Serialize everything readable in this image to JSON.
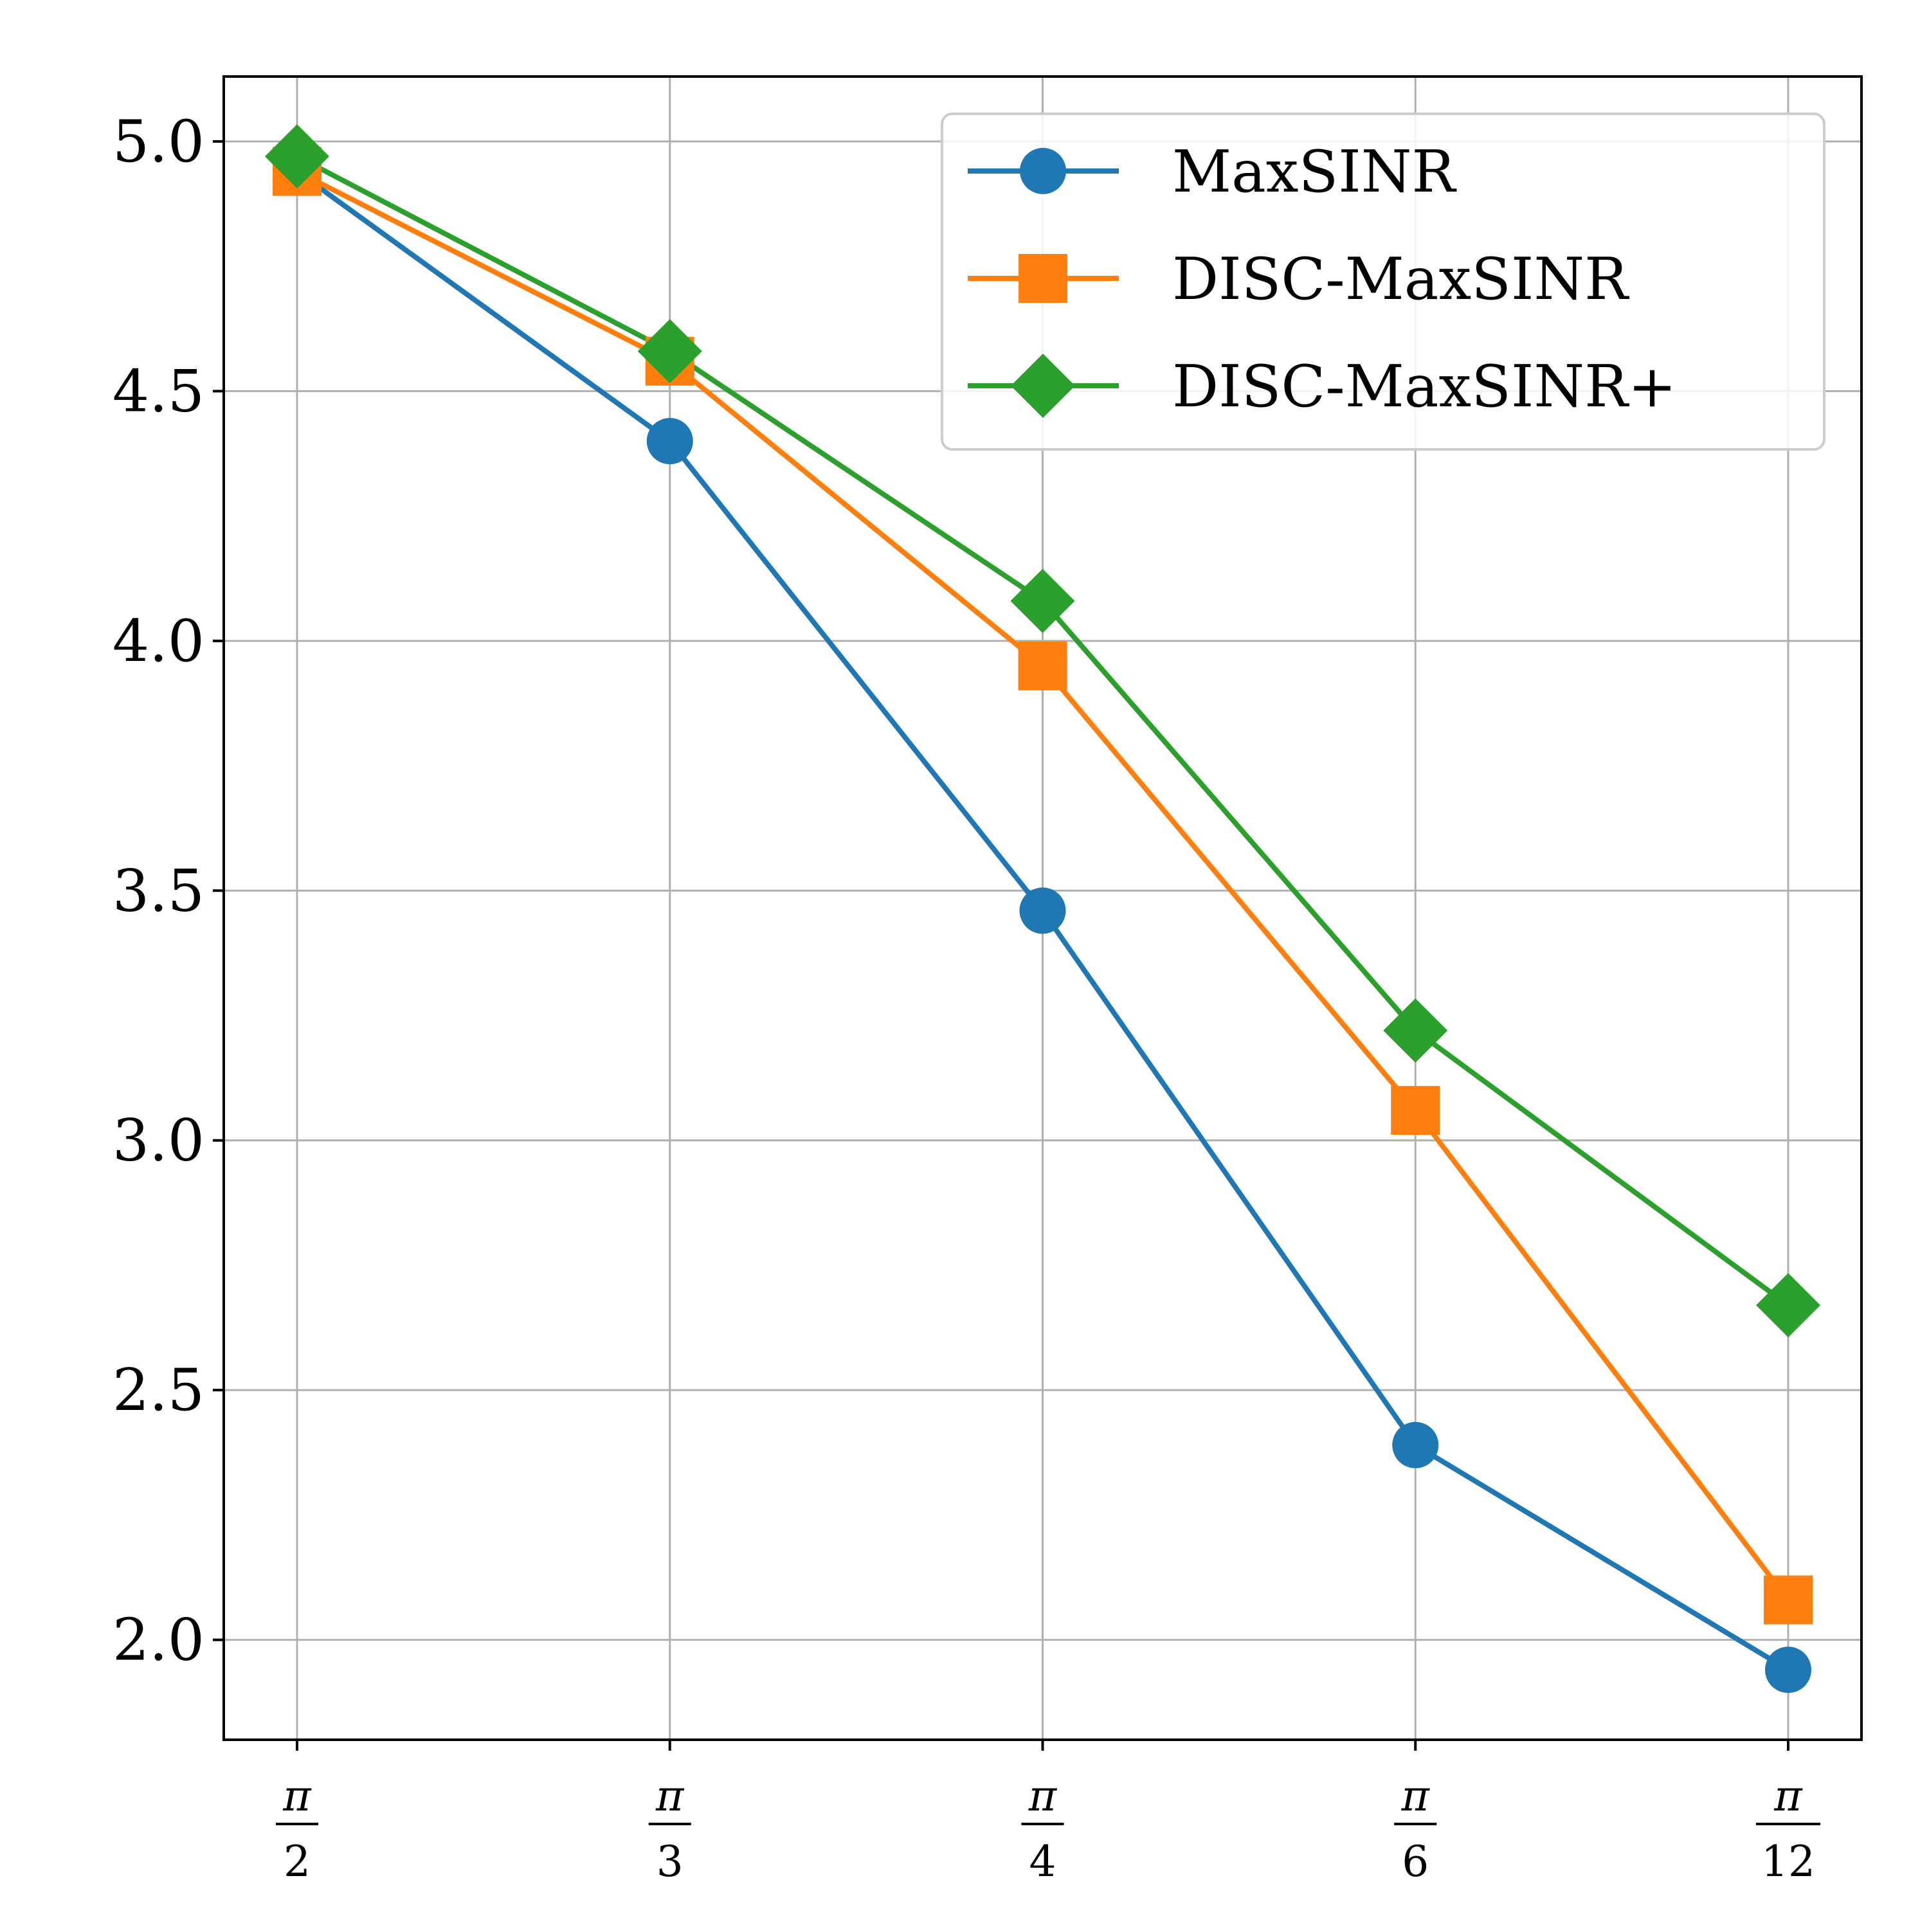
{
  "chart_data": {
    "type": "line",
    "title": "",
    "xlabel": "",
    "ylabel": "",
    "categories": [
      {
        "num": "π",
        "den": "2"
      },
      {
        "num": "π",
        "den": "3"
      },
      {
        "num": "π",
        "den": "4"
      },
      {
        "num": "π",
        "den": "6"
      },
      {
        "num": "π",
        "den": "12"
      }
    ],
    "ylim": [
      1.8,
      5.13
    ],
    "yticks": [
      "2.0",
      "2.5",
      "3.0",
      "3.5",
      "4.0",
      "4.5",
      "5.0"
    ],
    "grid": true,
    "legend": "top-right",
    "series": [
      {
        "name": "MaxSINR",
        "color": "#1f77b4",
        "marker": "circle",
        "values": [
          4.94,
          4.4,
          3.46,
          2.39,
          1.94
        ]
      },
      {
        "name": "DISC-MaxSINR",
        "color": "#ff7f0e",
        "marker": "square",
        "values": [
          4.94,
          4.56,
          3.95,
          3.06,
          2.08
        ]
      },
      {
        "name": "DISC-MaxSINR+",
        "color": "#2ca02c",
        "marker": "diamond",
        "values": [
          4.97,
          4.58,
          4.08,
          3.22,
          2.67
        ]
      }
    ]
  }
}
